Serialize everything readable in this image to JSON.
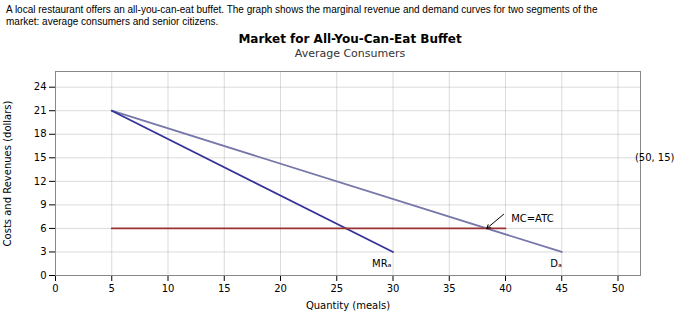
{
  "chart_data": {
    "type": "line",
    "description": "A local restaurant offers an all-you-can-eat buffet. The graph shows the marginal revenue and demand curves for two segments of the\nmarket: average consumers and senior citizens.",
    "title": "Market for All-You-Can-Eat Buffet",
    "subtitle": "Average Consumers",
    "xlabel": "Quantity (meals)",
    "ylabel": "Costs and Revenues (dollars)",
    "xlim": [
      0,
      52
    ],
    "ylim": [
      0,
      26
    ],
    "xticks": [
      0,
      5,
      10,
      15,
      20,
      25,
      30,
      35,
      40,
      45,
      50
    ],
    "yticks": [
      0,
      3,
      6,
      9,
      12,
      15,
      18,
      21,
      24
    ],
    "grid": true,
    "series": [
      {
        "name": "Dₐ",
        "color": "#7777aa",
        "x": [
          5,
          45
        ],
        "values": [
          21,
          3
        ],
        "label_at": [
          44.5,
          2.0
        ]
      },
      {
        "name": "MRₐ",
        "color": "#333399",
        "x": [
          5,
          30
        ],
        "values": [
          21,
          3
        ],
        "label_at": [
          29,
          2.0
        ]
      },
      {
        "name": "MC=ATC",
        "color": "#993333",
        "x": [
          5,
          40
        ],
        "values": [
          6,
          6
        ],
        "label_at": [
          40.5,
          6.8
        ]
      }
    ],
    "annotations": [
      {
        "text": "(50, 15)",
        "x": 51.5,
        "y": 15
      },
      {
        "arrow_from": [
          39.833333333333336,
          7.8
        ],
        "arrow_to": [
          38.333333333333336,
          6
        ]
      }
    ]
  }
}
